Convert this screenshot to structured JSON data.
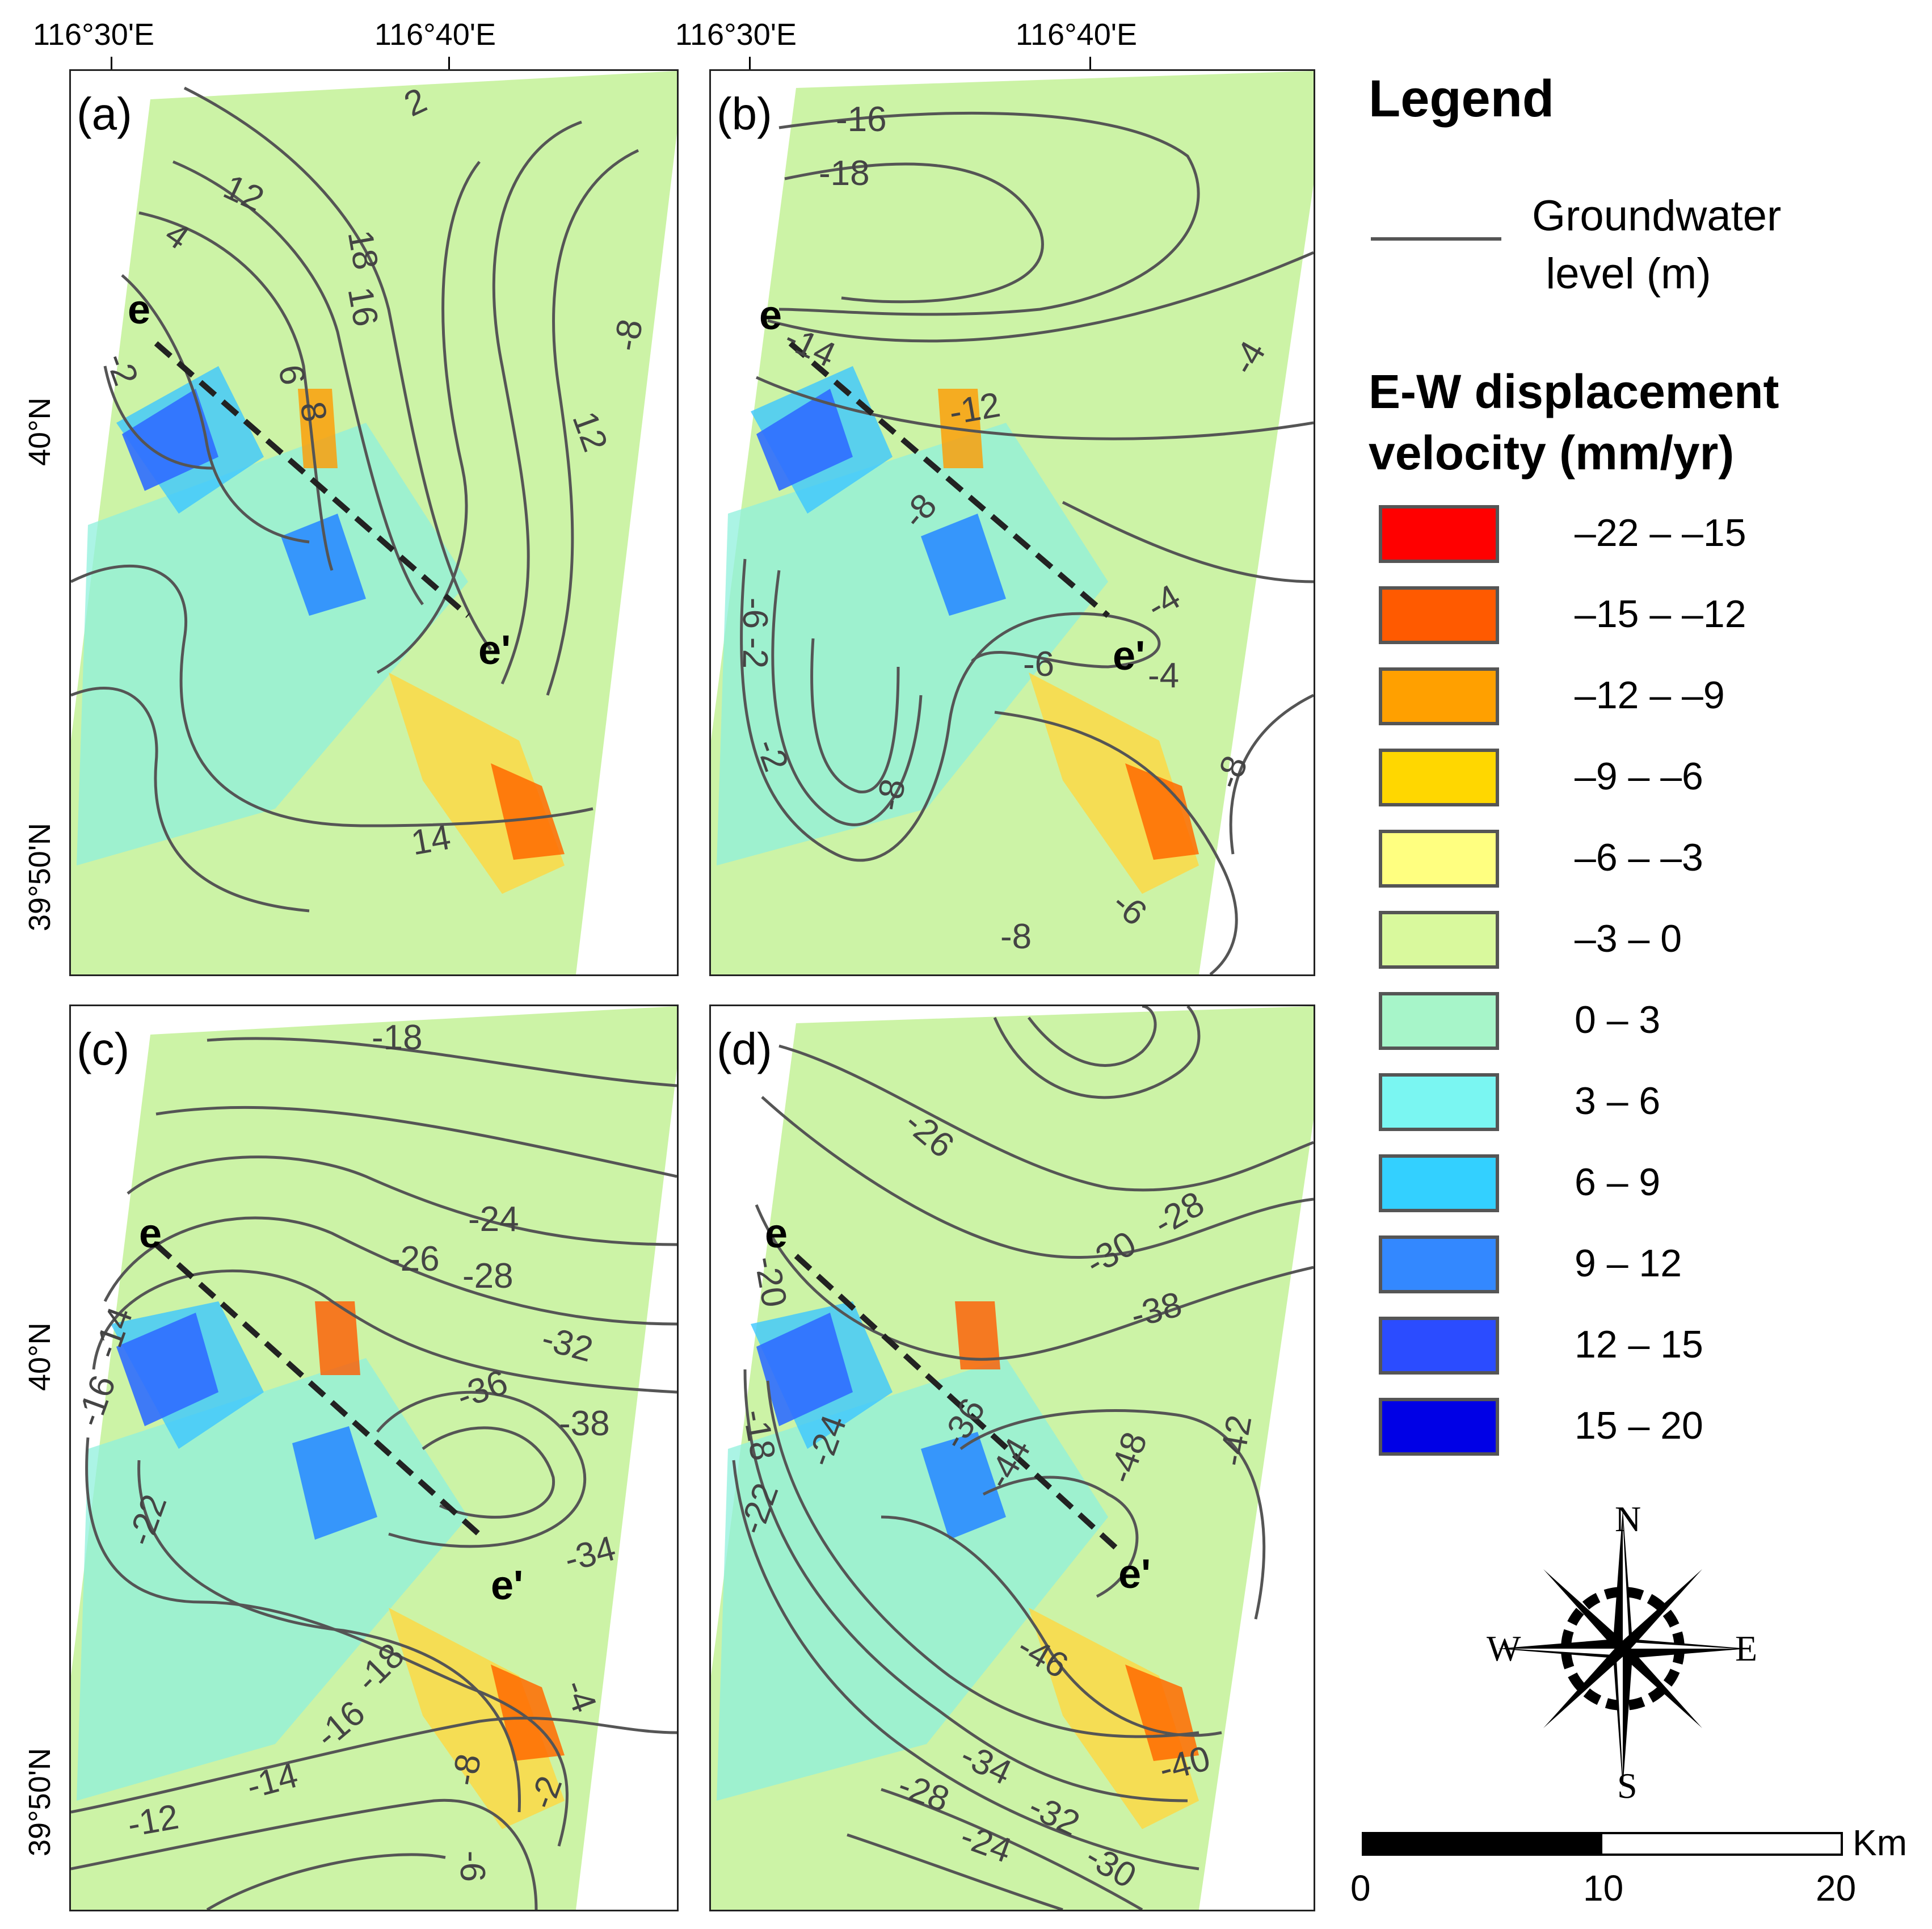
{
  "map": {
    "top_lon_labels_left": [
      "116°30'E",
      "116°40'E"
    ],
    "top_lon_labels_right": [
      "116°30'E",
      "116°40'E"
    ],
    "lat_labels_top": [
      "40°N",
      "39°50'N"
    ],
    "lat_labels_bottom": [
      "40°N",
      "39°50'N"
    ],
    "profile_start": "e",
    "profile_end": "e'",
    "panels": [
      {
        "label": "(a)",
        "contour_labels": [
          "2",
          "12",
          "4",
          "-8",
          "-2",
          "6",
          "8",
          "18",
          "16",
          "8",
          "12",
          "14"
        ]
      },
      {
        "label": "(b)",
        "contour_labels": [
          "-16",
          "-18",
          "-14",
          "-12",
          "-4",
          "-8",
          "-6",
          "-2",
          "-4",
          "-2",
          "-8",
          "-6",
          "-4",
          "-4",
          "-8",
          "-6",
          "-8"
        ]
      },
      {
        "label": "(c)",
        "contour_labels": [
          "-18",
          "-24",
          "-26",
          "-28",
          "-32",
          "-14",
          "-16",
          "-36",
          "-38",
          "-22",
          "-34",
          "-18",
          "-16",
          "-14",
          "-12",
          "-8",
          "-4",
          "-2",
          "-6"
        ]
      },
      {
        "label": "(d)",
        "contour_labels": [
          "-26",
          "-28",
          "-30",
          "-38",
          "-20",
          "-36",
          "-18",
          "-24",
          "-22",
          "-44",
          "-48",
          "-42",
          "-46",
          "-34",
          "-28",
          "-32",
          "-24",
          "-30",
          "-40"
        ]
      }
    ]
  },
  "legend": {
    "title": "Legend",
    "line_item_label_1": "Groundwater",
    "line_item_label_2": "level (m)",
    "velocity_title_1": "E-W displacement",
    "velocity_title_2": "velocity (mm/yr)",
    "classes": [
      {
        "label": "–22 – –15",
        "color": "#ff0000"
      },
      {
        "label": "–15 – –12",
        "color": "#ff5a00"
      },
      {
        "label": "–12 – –9",
        "color": "#ffa000"
      },
      {
        "label": "–9 – –6",
        "color": "#ffd700"
      },
      {
        "label": "–6 – –3",
        "color": "#ffff80"
      },
      {
        "label": "–3 – 0",
        "color": "#d9f99d"
      },
      {
        "label": "0 – 3",
        "color": "#a7f5c9"
      },
      {
        "label": "3 – 6",
        "color": "#7af6f2"
      },
      {
        "label": "6 – 9",
        "color": "#33d0ff"
      },
      {
        "label": "9 – 12",
        "color": "#3388ff"
      },
      {
        "label": "12 – 15",
        "color": "#2b4cff"
      },
      {
        "label": "15 – 20",
        "color": "#0000e6"
      }
    ],
    "compass": {
      "n": "N",
      "s": "S",
      "e": "E",
      "w": "W"
    },
    "scale": {
      "ticks": [
        "0",
        "10",
        "20"
      ],
      "unit": "Km"
    }
  }
}
